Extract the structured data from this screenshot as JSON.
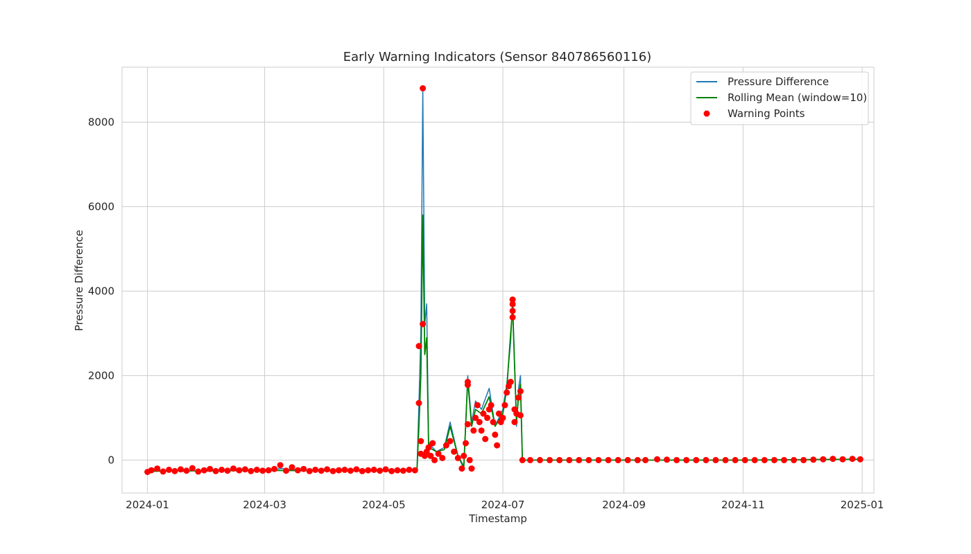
{
  "chart_data": {
    "type": "line",
    "title": "Early Warning Indicators (Sensor 840786560116)",
    "xlabel": "Timestamp",
    "ylabel": "Pressure Difference",
    "x_range": [
      "2023-12-19",
      "2025-01-07"
    ],
    "ylim": [
      -780,
      9300
    ],
    "x_ticks": [
      "2024-01",
      "2024-03",
      "2024-05",
      "2024-07",
      "2024-09",
      "2024-11",
      "2025-01"
    ],
    "y_ticks": [
      0,
      2000,
      4000,
      6000,
      8000
    ],
    "grid": true,
    "legend_placement": "top-right",
    "colors": {
      "pressure_difference": "#1f77b4",
      "rolling_mean": "#008000",
      "warning_points": "#ff0000",
      "grid": "#cccccc",
      "axes_edge": "#cccccc"
    },
    "series": [
      {
        "name": "Pressure Difference",
        "kind": "line",
        "points": [
          [
            "2024-01-01",
            -280
          ],
          [
            "2024-01-05",
            -230
          ],
          [
            "2024-01-10",
            -260
          ],
          [
            "2024-01-15",
            -240
          ],
          [
            "2024-01-20",
            -270
          ],
          [
            "2024-01-25",
            -250
          ],
          [
            "2024-02-01",
            -260
          ],
          [
            "2024-02-10",
            -240
          ],
          [
            "2024-02-20",
            -250
          ],
          [
            "2024-03-01",
            -240
          ],
          [
            "2024-03-10",
            -200
          ],
          [
            "2024-03-20",
            -250
          ],
          [
            "2024-04-01",
            -240
          ],
          [
            "2024-04-10",
            -260
          ],
          [
            "2024-04-20",
            -240
          ],
          [
            "2024-05-01",
            -260
          ],
          [
            "2024-05-10",
            -250
          ],
          [
            "2024-05-18",
            -230
          ],
          [
            "2024-05-19",
            1350
          ],
          [
            "2024-05-20",
            3000
          ],
          [
            "2024-05-21",
            8800
          ],
          [
            "2024-05-22",
            3200
          ],
          [
            "2024-05-23",
            3700
          ],
          [
            "2024-05-24",
            400
          ],
          [
            "2024-05-28",
            200
          ],
          [
            "2024-06-01",
            300
          ],
          [
            "2024-06-04",
            900
          ],
          [
            "2024-06-08",
            100
          ],
          [
            "2024-06-11",
            -200
          ],
          [
            "2024-06-13",
            2000
          ],
          [
            "2024-06-15",
            900
          ],
          [
            "2024-06-17",
            1400
          ],
          [
            "2024-06-20",
            1200
          ],
          [
            "2024-06-24",
            1700
          ],
          [
            "2024-06-27",
            800
          ],
          [
            "2024-07-01",
            1200
          ],
          [
            "2024-07-03",
            1800
          ],
          [
            "2024-07-05",
            2800
          ],
          [
            "2024-07-06",
            3800
          ],
          [
            "2024-07-08",
            800
          ],
          [
            "2024-07-09",
            1700
          ],
          [
            "2024-07-10",
            2000
          ],
          [
            "2024-07-11",
            0
          ],
          [
            "2024-07-20",
            0
          ],
          [
            "2024-08-01",
            0
          ],
          [
            "2024-08-15",
            0
          ],
          [
            "2024-09-01",
            0
          ],
          [
            "2024-09-10",
            0
          ],
          [
            "2024-10-01",
            0
          ],
          [
            "2024-11-01",
            0
          ],
          [
            "2024-12-01",
            10
          ],
          [
            "2024-12-15",
            20
          ],
          [
            "2024-12-31",
            20
          ]
        ]
      },
      {
        "name": "Rolling Mean (window=10)",
        "kind": "line",
        "points": [
          [
            "2024-01-01",
            -270
          ],
          [
            "2024-01-15",
            -250
          ],
          [
            "2024-02-01",
            -255
          ],
          [
            "2024-03-01",
            -245
          ],
          [
            "2024-04-01",
            -250
          ],
          [
            "2024-05-01",
            -255
          ],
          [
            "2024-05-18",
            -240
          ],
          [
            "2024-05-19",
            800
          ],
          [
            "2024-05-20",
            2000
          ],
          [
            "2024-05-21",
            5800
          ],
          [
            "2024-05-22",
            2500
          ],
          [
            "2024-05-23",
            2900
          ],
          [
            "2024-05-24",
            300
          ],
          [
            "2024-05-28",
            200
          ],
          [
            "2024-06-01",
            250
          ],
          [
            "2024-06-04",
            800
          ],
          [
            "2024-06-08",
            100
          ],
          [
            "2024-06-11",
            -150
          ],
          [
            "2024-06-13",
            1900
          ],
          [
            "2024-06-15",
            800
          ],
          [
            "2024-06-17",
            1200
          ],
          [
            "2024-06-20",
            1100
          ],
          [
            "2024-06-24",
            1500
          ],
          [
            "2024-06-27",
            800
          ],
          [
            "2024-07-01",
            1100
          ],
          [
            "2024-07-03",
            1700
          ],
          [
            "2024-07-05",
            3000
          ],
          [
            "2024-07-06",
            3600
          ],
          [
            "2024-07-08",
            900
          ],
          [
            "2024-07-09",
            1500
          ],
          [
            "2024-07-10",
            1800
          ],
          [
            "2024-07-11",
            0
          ],
          [
            "2024-08-01",
            0
          ],
          [
            "2024-09-01",
            0
          ],
          [
            "2024-10-01",
            0
          ],
          [
            "2024-11-01",
            0
          ],
          [
            "2024-12-01",
            10
          ],
          [
            "2024-12-31",
            20
          ]
        ]
      },
      {
        "name": "Warning Points",
        "kind": "scatter",
        "points": [
          [
            "2024-01-01",
            -280
          ],
          [
            "2024-01-03",
            -240
          ],
          [
            "2024-01-06",
            -200
          ],
          [
            "2024-01-09",
            -270
          ],
          [
            "2024-01-12",
            -230
          ],
          [
            "2024-01-15",
            -260
          ],
          [
            "2024-01-18",
            -220
          ],
          [
            "2024-01-21",
            -250
          ],
          [
            "2024-01-24",
            -190
          ],
          [
            "2024-01-27",
            -270
          ],
          [
            "2024-01-30",
            -240
          ],
          [
            "2024-02-02",
            -210
          ],
          [
            "2024-02-05",
            -260
          ],
          [
            "2024-02-08",
            -230
          ],
          [
            "2024-02-11",
            -250
          ],
          [
            "2024-02-14",
            -200
          ],
          [
            "2024-02-17",
            -240
          ],
          [
            "2024-02-20",
            -220
          ],
          [
            "2024-02-23",
            -260
          ],
          [
            "2024-02-26",
            -230
          ],
          [
            "2024-02-29",
            -250
          ],
          [
            "2024-03-03",
            -240
          ],
          [
            "2024-03-06",
            -210
          ],
          [
            "2024-03-09",
            -120
          ],
          [
            "2024-03-12",
            -250
          ],
          [
            "2024-03-15",
            -170
          ],
          [
            "2024-03-18",
            -240
          ],
          [
            "2024-03-21",
            -210
          ],
          [
            "2024-03-24",
            -260
          ],
          [
            "2024-03-27",
            -230
          ],
          [
            "2024-03-30",
            -250
          ],
          [
            "2024-04-02",
            -220
          ],
          [
            "2024-04-05",
            -260
          ],
          [
            "2024-04-08",
            -240
          ],
          [
            "2024-04-11",
            -230
          ],
          [
            "2024-04-14",
            -250
          ],
          [
            "2024-04-17",
            -220
          ],
          [
            "2024-04-20",
            -260
          ],
          [
            "2024-04-23",
            -240
          ],
          [
            "2024-04-26",
            -230
          ],
          [
            "2024-04-29",
            -250
          ],
          [
            "2024-05-02",
            -220
          ],
          [
            "2024-05-05",
            -260
          ],
          [
            "2024-05-08",
            -240
          ],
          [
            "2024-05-11",
            -250
          ],
          [
            "2024-05-14",
            -230
          ],
          [
            "2024-05-17",
            -240
          ],
          [
            "2024-05-19",
            1350
          ],
          [
            "2024-05-19",
            2700
          ],
          [
            "2024-05-20",
            450
          ],
          [
            "2024-05-20",
            150
          ],
          [
            "2024-05-21",
            8800
          ],
          [
            "2024-05-21",
            3220
          ],
          [
            "2024-05-22",
            100
          ],
          [
            "2024-05-23",
            200
          ],
          [
            "2024-05-24",
            300
          ],
          [
            "2024-05-25",
            100
          ],
          [
            "2024-05-26",
            400
          ],
          [
            "2024-05-27",
            0
          ],
          [
            "2024-05-29",
            150
          ],
          [
            "2024-05-31",
            50
          ],
          [
            "2024-06-02",
            350
          ],
          [
            "2024-06-04",
            450
          ],
          [
            "2024-06-06",
            200
          ],
          [
            "2024-06-08",
            50
          ],
          [
            "2024-06-10",
            -200
          ],
          [
            "2024-06-11",
            100
          ],
          [
            "2024-06-12",
            400
          ],
          [
            "2024-06-13",
            1850
          ],
          [
            "2024-06-13",
            1780
          ],
          [
            "2024-06-13",
            850
          ],
          [
            "2024-06-14",
            0
          ],
          [
            "2024-06-15",
            -200
          ],
          [
            "2024-06-16",
            700
          ],
          [
            "2024-06-17",
            1000
          ],
          [
            "2024-06-18",
            1300
          ],
          [
            "2024-06-19",
            900
          ],
          [
            "2024-06-20",
            700
          ],
          [
            "2024-06-21",
            1100
          ],
          [
            "2024-06-22",
            500
          ],
          [
            "2024-06-23",
            1000
          ],
          [
            "2024-06-24",
            1200
          ],
          [
            "2024-06-25",
            1300
          ],
          [
            "2024-06-26",
            900
          ],
          [
            "2024-06-27",
            600
          ],
          [
            "2024-06-28",
            350
          ],
          [
            "2024-06-29",
            1100
          ],
          [
            "2024-06-30",
            900
          ],
          [
            "2024-07-01",
            1000
          ],
          [
            "2024-07-02",
            1300
          ],
          [
            "2024-07-03",
            1600
          ],
          [
            "2024-07-04",
            1750
          ],
          [
            "2024-07-05",
            1850
          ],
          [
            "2024-07-06",
            3380
          ],
          [
            "2024-07-06",
            3530
          ],
          [
            "2024-07-06",
            3690
          ],
          [
            "2024-07-06",
            3800
          ],
          [
            "2024-07-07",
            1200
          ],
          [
            "2024-07-07",
            900
          ],
          [
            "2024-07-08",
            1100
          ],
          [
            "2024-07-09",
            1480
          ],
          [
            "2024-07-10",
            1630
          ],
          [
            "2024-07-10",
            1060
          ],
          [
            "2024-07-11",
            0
          ],
          [
            "2024-07-15",
            0
          ],
          [
            "2024-07-20",
            0
          ],
          [
            "2024-07-25",
            0
          ],
          [
            "2024-07-30",
            0
          ],
          [
            "2024-08-04",
            0
          ],
          [
            "2024-08-09",
            0
          ],
          [
            "2024-08-14",
            0
          ],
          [
            "2024-08-19",
            0
          ],
          [
            "2024-08-24",
            0
          ],
          [
            "2024-08-29",
            0
          ],
          [
            "2024-09-03",
            0
          ],
          [
            "2024-09-08",
            0
          ],
          [
            "2024-09-12",
            0
          ],
          [
            "2024-09-18",
            20
          ],
          [
            "2024-09-23",
            10
          ],
          [
            "2024-09-28",
            0
          ],
          [
            "2024-10-03",
            0
          ],
          [
            "2024-10-08",
            0
          ],
          [
            "2024-10-13",
            0
          ],
          [
            "2024-10-18",
            0
          ],
          [
            "2024-10-23",
            0
          ],
          [
            "2024-10-28",
            0
          ],
          [
            "2024-11-02",
            0
          ],
          [
            "2024-11-07",
            0
          ],
          [
            "2024-11-12",
            0
          ],
          [
            "2024-11-17",
            0
          ],
          [
            "2024-11-22",
            0
          ],
          [
            "2024-11-27",
            0
          ],
          [
            "2024-12-02",
            0
          ],
          [
            "2024-12-07",
            10
          ],
          [
            "2024-12-12",
            20
          ],
          [
            "2024-12-17",
            30
          ],
          [
            "2024-12-22",
            20
          ],
          [
            "2024-12-27",
            30
          ],
          [
            "2024-12-31",
            20
          ]
        ]
      }
    ]
  }
}
